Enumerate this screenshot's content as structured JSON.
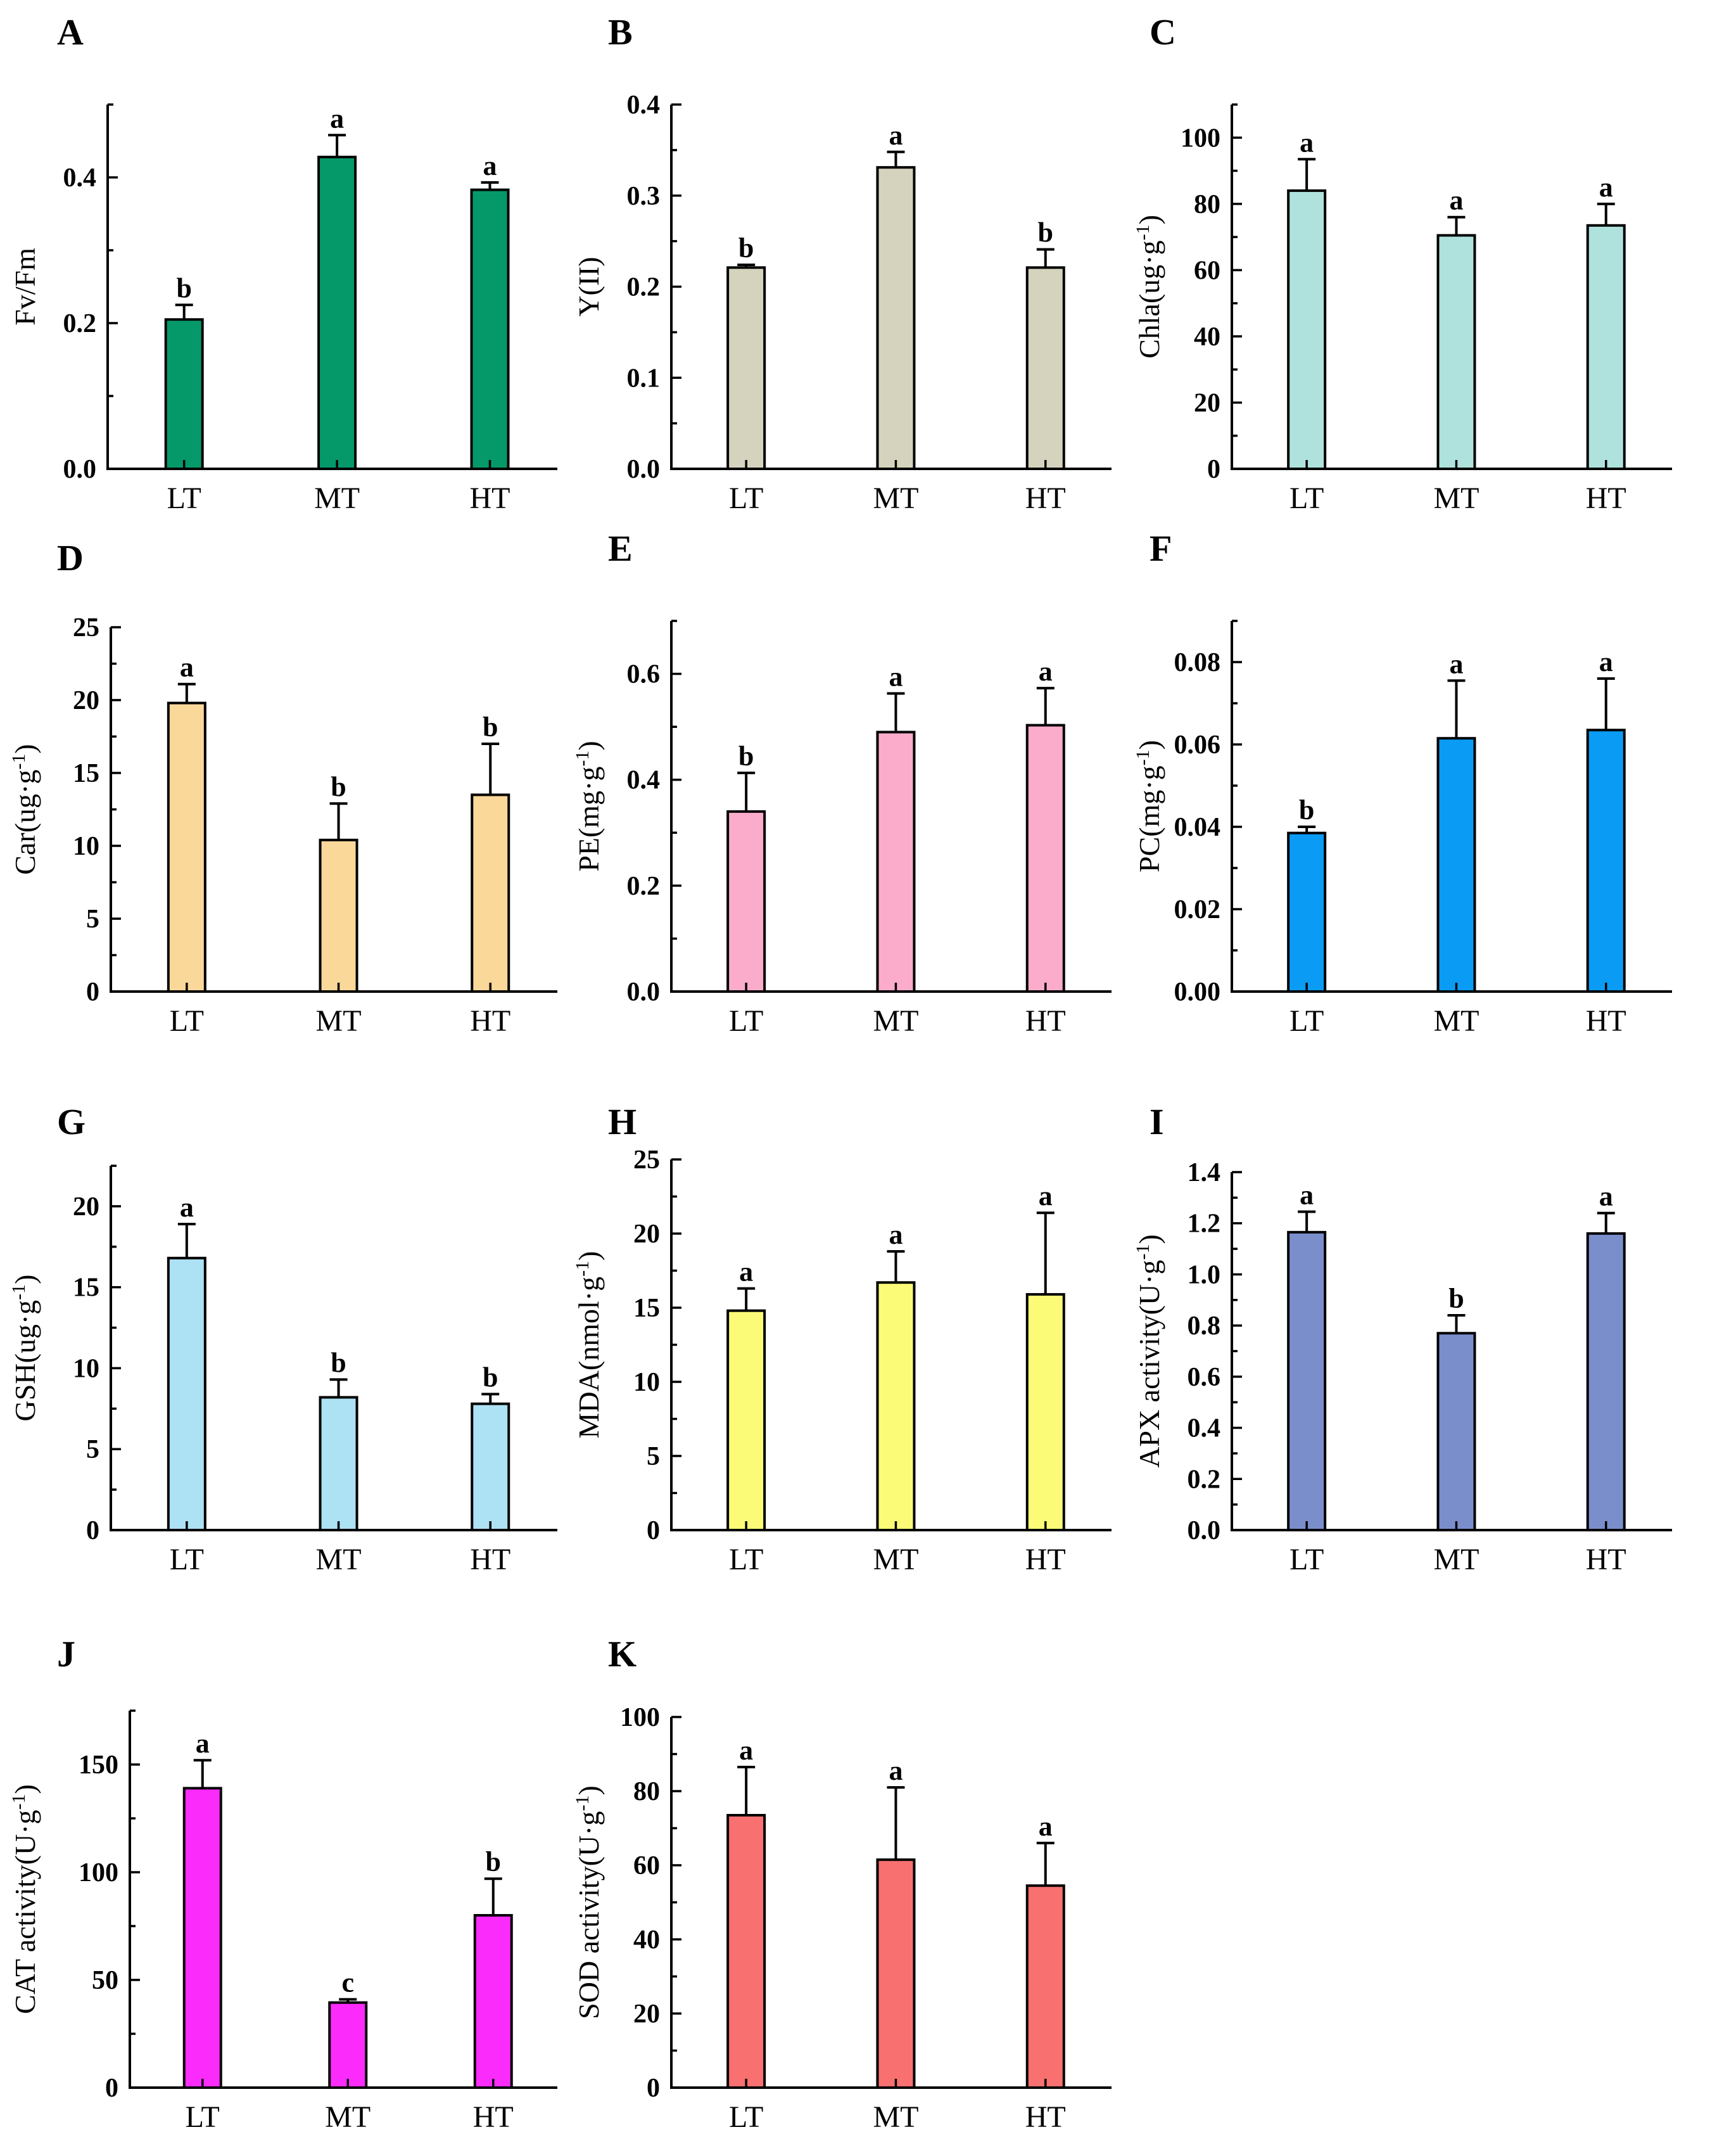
{
  "figure": {
    "categories": [
      "LT",
      "MT",
      "HT"
    ]
  },
  "chart_data": [
    {
      "letter": "A",
      "type": "bar",
      "ylabel": "Fv/Fm",
      "ylim": [
        0,
        0.5
      ],
      "ticks": [
        0.0,
        0.2,
        0.4
      ],
      "tick_labels": [
        "0.0",
        "0.2",
        "0.4"
      ],
      "minor_step": 0.1,
      "color": "#05996A",
      "categories": [
        "LT",
        "MT",
        "HT"
      ],
      "values": [
        0.205,
        0.428,
        0.383
      ],
      "errors": [
        0.02,
        0.03,
        0.01
      ],
      "sig": [
        "b",
        "a",
        "a"
      ]
    },
    {
      "letter": "B",
      "type": "bar",
      "ylabel": "Y(II)",
      "ylim": [
        0,
        0.4
      ],
      "ticks": [
        0.0,
        0.1,
        0.2,
        0.3,
        0.4
      ],
      "tick_labels": [
        "0.0",
        "0.1",
        "0.2",
        "0.3",
        "0.4"
      ],
      "minor_step": 0.05,
      "color": "#D5D3BD",
      "categories": [
        "LT",
        "MT",
        "HT"
      ],
      "values": [
        0.221,
        0.331,
        0.221
      ],
      "errors": [
        0.003,
        0.017,
        0.02
      ],
      "sig": [
        "b",
        "a",
        "b"
      ]
    },
    {
      "letter": "C",
      "type": "bar",
      "ylabel": "Chla(ug·g-1)",
      "ylim": [
        0,
        110
      ],
      "ticks": [
        0,
        20,
        40,
        60,
        80,
        100
      ],
      "tick_labels": [
        "0",
        "20",
        "40",
        "60",
        "80",
        "100"
      ],
      "minor_step": 10,
      "color": "#AFE2DC",
      "categories": [
        "LT",
        "MT",
        "HT"
      ],
      "values": [
        84,
        70.5,
        73.5
      ],
      "errors": [
        9.5,
        5.5,
        6.5
      ],
      "sig": [
        "a",
        "a",
        "a"
      ]
    },
    {
      "letter": "D",
      "type": "bar",
      "ylabel": "Car(ug·g-1)",
      "ylim": [
        0,
        25
      ],
      "ticks": [
        0,
        5,
        10,
        15,
        20,
        25
      ],
      "tick_labels": [
        "0",
        "5",
        "10",
        "15",
        "20",
        "25"
      ],
      "minor_step": 2.5,
      "color": "#FAD89A",
      "categories": [
        "LT",
        "MT",
        "HT"
      ],
      "values": [
        19.8,
        10.4,
        13.5
      ],
      "errors": [
        1.3,
        2.5,
        3.5
      ],
      "sig": [
        "a",
        "b",
        "b"
      ]
    },
    {
      "letter": "E",
      "type": "bar",
      "ylabel": "PE(mg·g-1)",
      "ylim": [
        0,
        0.7
      ],
      "ticks": [
        0.0,
        0.2,
        0.4,
        0.6
      ],
      "tick_labels": [
        "0.0",
        "0.2",
        "0.4",
        "0.6"
      ],
      "minor_step": 0.1,
      "color": "#FBACCB",
      "categories": [
        "LT",
        "MT",
        "HT"
      ],
      "values": [
        0.34,
        0.49,
        0.503
      ],
      "errors": [
        0.073,
        0.073,
        0.07
      ],
      "sig": [
        "b",
        "a",
        "a"
      ]
    },
    {
      "letter": "F",
      "type": "bar",
      "ylabel": "PC(mg·g-1)",
      "ylim": [
        0,
        0.09
      ],
      "ticks": [
        0.0,
        0.02,
        0.04,
        0.06,
        0.08
      ],
      "tick_labels": [
        "0.00",
        "0.02",
        "0.04",
        "0.06",
        "0.08"
      ],
      "minor_step": 0.01,
      "color": "#0A9CF4",
      "categories": [
        "LT",
        "MT",
        "HT"
      ],
      "values": [
        0.0385,
        0.0615,
        0.0635
      ],
      "errors": [
        0.0015,
        0.014,
        0.0125
      ],
      "sig": [
        "b",
        "a",
        "a"
      ]
    },
    {
      "letter": "G",
      "type": "bar",
      "ylabel": "GSH(ug·g-1)",
      "ylim": [
        0,
        22.5
      ],
      "ticks": [
        0,
        5,
        10,
        15,
        20
      ],
      "tick_labels": [
        "0",
        "5",
        "10",
        "15",
        "20"
      ],
      "minor_step": 2.5,
      "color": "#ADE1F4",
      "categories": [
        "LT",
        "MT",
        "HT"
      ],
      "values": [
        16.8,
        8.2,
        7.8
      ],
      "errors": [
        2.1,
        1.1,
        0.6
      ],
      "sig": [
        "a",
        "b",
        "b"
      ]
    },
    {
      "letter": "H",
      "type": "bar",
      "ylabel": "MDA(nmol·g-1)",
      "ylim": [
        0,
        25
      ],
      "ticks": [
        0,
        5,
        10,
        15,
        20,
        25
      ],
      "tick_labels": [
        "0",
        "5",
        "10",
        "15",
        "20",
        "25"
      ],
      "minor_step": 2.5,
      "color": "#FCFB77",
      "categories": [
        "LT",
        "MT",
        "HT"
      ],
      "values": [
        14.8,
        16.7,
        15.9
      ],
      "errors": [
        1.5,
        2.1,
        5.5
      ],
      "sig": [
        "a",
        "a",
        "a"
      ]
    },
    {
      "letter": "I",
      "type": "bar",
      "ylabel": "APX activity(U·g-1)",
      "ylim": [
        0,
        1.4
      ],
      "ticks": [
        0.0,
        0.2,
        0.4,
        0.6,
        0.8,
        1.0,
        1.2,
        1.4
      ],
      "tick_labels": [
        "0.0",
        "0.2",
        "0.4",
        "0.6",
        "0.8",
        "1.0",
        "1.2",
        "1.4"
      ],
      "minor_step": 0.1,
      "color": "#7B8ECC",
      "categories": [
        "LT",
        "MT",
        "HT"
      ],
      "values": [
        1.165,
        0.77,
        1.16
      ],
      "errors": [
        0.08,
        0.07,
        0.08
      ],
      "sig": [
        "a",
        "b",
        "a"
      ]
    },
    {
      "letter": "J",
      "type": "bar",
      "ylabel": "CAT activity(U·g-1)",
      "ylim": [
        0,
        175
      ],
      "ticks": [
        0,
        50,
        100,
        150
      ],
      "tick_labels": [
        "0",
        "50",
        "100",
        "150"
      ],
      "minor_step": 25,
      "color": "#FB2BFB",
      "categories": [
        "LT",
        "MT",
        "HT"
      ],
      "values": [
        139,
        39.5,
        80
      ],
      "errors": [
        13,
        1.5,
        17
      ],
      "sig": [
        "a",
        "c",
        "b"
      ]
    },
    {
      "letter": "K",
      "type": "bar",
      "ylabel": "SOD activity(U·g-1)",
      "ylim": [
        0,
        100
      ],
      "ticks": [
        0,
        20,
        40,
        60,
        80,
        100
      ],
      "tick_labels": [
        "0",
        "20",
        "40",
        "60",
        "80",
        "100"
      ],
      "minor_step": 10,
      "color": "#F87070",
      "categories": [
        "LT",
        "MT",
        "HT"
      ],
      "values": [
        73.5,
        61.5,
        54.5
      ],
      "errors": [
        13,
        19.5,
        11.5
      ],
      "sig": [
        "a",
        "a",
        "a"
      ]
    }
  ]
}
